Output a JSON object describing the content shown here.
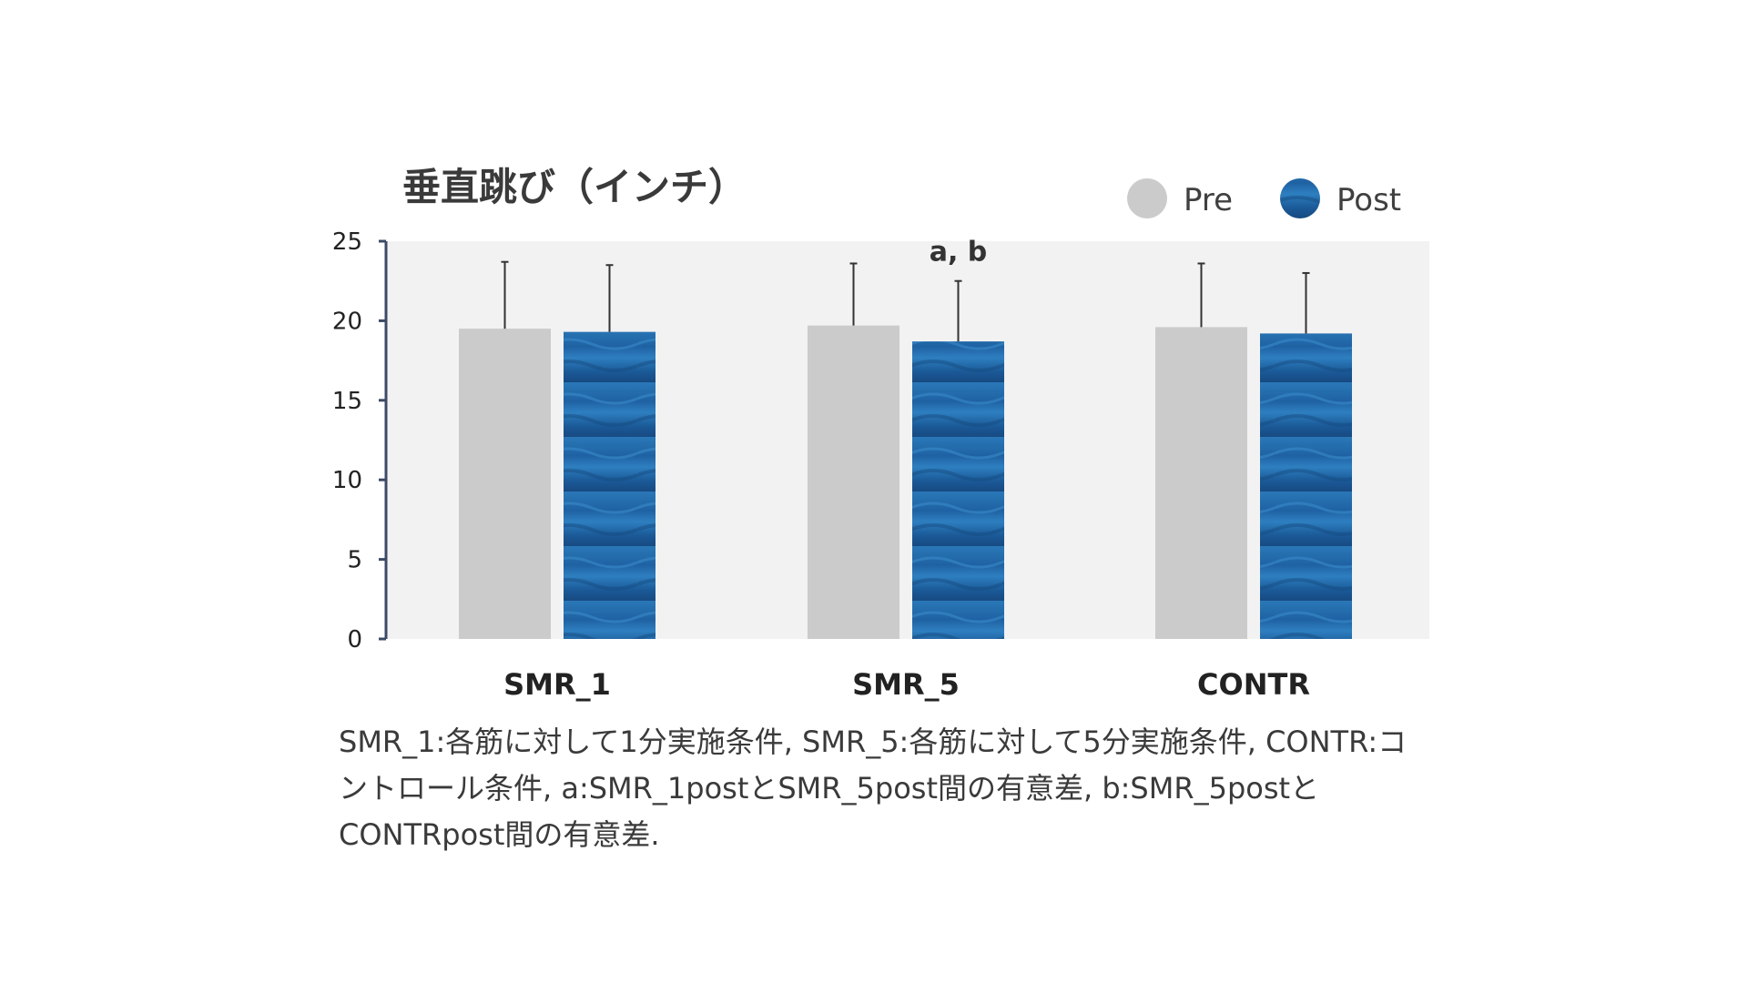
{
  "chart_data": {
    "type": "bar",
    "title": "垂直跳び（インチ）",
    "xlabel": "",
    "ylabel": "",
    "ylim": [
      0,
      25
    ],
    "yticks": [
      0,
      5,
      10,
      15,
      20,
      25
    ],
    "grid": false,
    "legend_position": "top-right",
    "categories": [
      "SMR_1",
      "SMR_5",
      "CONTR"
    ],
    "series": [
      {
        "name": "Pre",
        "color": "#cbcbcb",
        "values": [
          19.5,
          19.7,
          19.6
        ],
        "error": [
          4.2,
          3.9,
          4.0
        ]
      },
      {
        "name": "Post",
        "color": "#1f5fa0",
        "values": [
          19.3,
          18.7,
          19.2
        ],
        "error": [
          4.2,
          3.8,
          3.8
        ]
      }
    ],
    "annotations": [
      {
        "category": "SMR_5",
        "series": "Post",
        "text": "a, b"
      }
    ]
  },
  "caption": "SMR_1:各筋に対して1分実施条件, SMR_5:各筋に対して5分実施条件, CONTR:コントロール条件, a:SMR_1postとSMR_5post間の有意差, b:SMR_5postとCONTRpost間の有意差.",
  "colors": {
    "plot_background": "#f2f2f2",
    "axis": "#3d4a66",
    "error_bar": "#333333"
  }
}
